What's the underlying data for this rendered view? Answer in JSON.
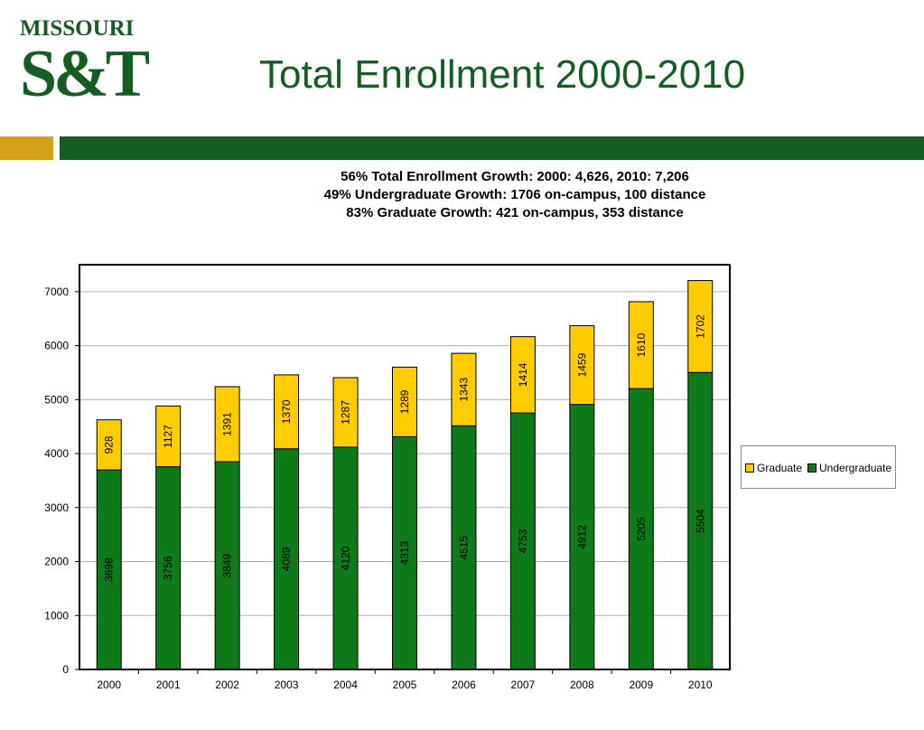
{
  "logo": {
    "word": "MISSOURI",
    "mark": "S&T"
  },
  "slide_title": "Total Enrollment 2000-2010",
  "subtitles": [
    "56% Total Enrollment Growth:  2000: 4,626, 2010: 7,206",
    "49% Undergraduate Growth: 1706 on-campus, 100 distance",
    "83% Graduate Growth: 421 on-campus, 353 distance"
  ],
  "colors": {
    "brand_green": "#155e23",
    "brand_gold": "#d4a017",
    "undergraduate": "#0f7a1a",
    "graduate": "#ffcc00"
  },
  "chart_data": {
    "type": "bar",
    "stacked": true,
    "categories": [
      "2000",
      "2001",
      "2002",
      "2003",
      "2004",
      "2005",
      "2006",
      "2007",
      "2008",
      "2009",
      "2010"
    ],
    "series": [
      {
        "name": "Undergraduate",
        "values": [
          3698,
          3756,
          3849,
          4089,
          4120,
          4313,
          4515,
          4753,
          4912,
          5205,
          5504
        ]
      },
      {
        "name": "Graduate",
        "values": [
          928,
          1127,
          1391,
          1370,
          1287,
          1289,
          1343,
          1414,
          1459,
          1610,
          1702
        ]
      }
    ],
    "ylim": [
      0,
      7500
    ],
    "yticks": [
      "0",
      "1000",
      "2000",
      "3000",
      "4000",
      "5000",
      "6000",
      "7000"
    ],
    "grid": true,
    "legend_position": "right",
    "legend": [
      "Graduate",
      "Undergraduate"
    ]
  }
}
